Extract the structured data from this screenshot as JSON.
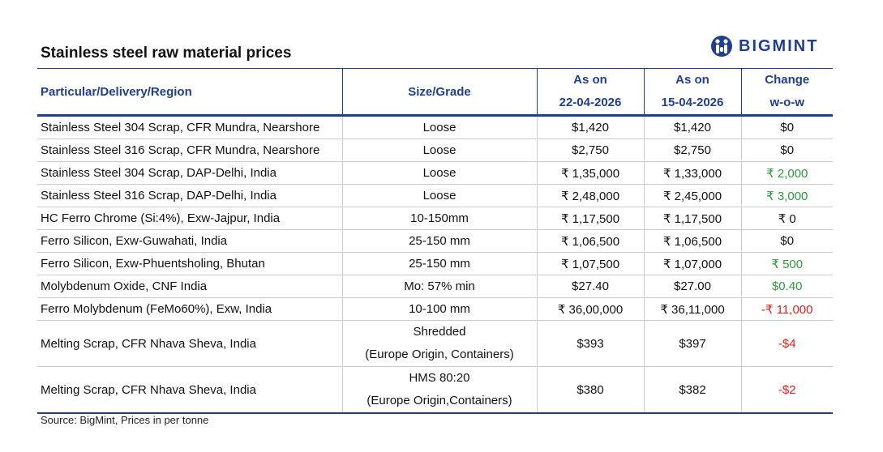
{
  "title": "Stainless steel raw material prices",
  "logo": {
    "text": "BIGMINT",
    "icon": "bigmint-logo-icon",
    "color": "#1f3f8f"
  },
  "table": {
    "headers": {
      "particular": "Particular/Delivery/Region",
      "size": "Size/Grade",
      "current_line1": "As on",
      "current_line2": "22-04-2026",
      "previous_line1": "As on",
      "previous_line2": "15-04-2026",
      "change_line1": "Change",
      "change_line2": "w-o-w"
    },
    "rows": [
      {
        "particular": "Stainless Steel 304 Scrap, CFR Mundra, Nearshore",
        "size1": "Loose",
        "size2": "",
        "current": "$1,420",
        "previous": "$1,420",
        "change": "$0",
        "trend": "neutral"
      },
      {
        "particular": "Stainless Steel 316 Scrap, CFR Mundra, Nearshore",
        "size1": "Loose",
        "size2": "",
        "current": "$2,750",
        "previous": "$2,750",
        "change": "$0",
        "trend": "neutral"
      },
      {
        "particular": "Stainless Steel 304 Scrap, DAP-Delhi, India",
        "size1": "Loose",
        "size2": "",
        "current": "₹ 1,35,000",
        "previous": "₹ 1,33,000",
        "change": "₹ 2,000",
        "trend": "pos"
      },
      {
        "particular": "Stainless Steel 316 Scrap, DAP-Delhi, India",
        "size1": "Loose",
        "size2": "",
        "current": "₹ 2,48,000",
        "previous": "₹ 2,45,000",
        "change": "₹ 3,000",
        "trend": "pos"
      },
      {
        "particular": "HC Ferro Chrome (Si:4%), Exw-Jajpur, India",
        "size1": "10-150mm",
        "size2": "",
        "current": "₹ 1,17,500",
        "previous": "₹ 1,17,500",
        "change": "₹ 0",
        "trend": "neutral"
      },
      {
        "particular": "Ferro Silicon, Exw-Guwahati, India",
        "size1": "25-150 mm",
        "size2": "",
        "current": "₹ 1,06,500",
        "previous": "₹ 1,06,500",
        "change": "$0",
        "trend": "neutral"
      },
      {
        "particular": "Ferro Silicon, Exw-Phuentsholing, Bhutan",
        "size1": "25-150 mm",
        "size2": "",
        "current": "₹ 1,07,500",
        "previous": "₹ 1,07,000",
        "change": "₹ 500",
        "trend": "pos"
      },
      {
        "particular": "Molybdenum Oxide, CNF India",
        "size1": "Mo: 57% min",
        "size2": "",
        "current": "$27.40",
        "previous": "$27.00",
        "change": "$0.40",
        "trend": "pos"
      },
      {
        "particular": "Ferro Molybdenum (FeMo60%), Exw, India",
        "size1": "10-100 mm",
        "size2": "",
        "current": "₹ 36,00,000",
        "previous": "₹ 36,11,000",
        "change": "-₹ 11,000",
        "trend": "neg"
      },
      {
        "particular": "Melting Scrap, CFR Nhava Sheva, India",
        "size1": "Shredded",
        "size2": "(Europe Origin, Containers)",
        "current": "$393",
        "previous": "$397",
        "change": "-$4",
        "trend": "neg"
      },
      {
        "particular": "Melting Scrap, CFR Nhava Sheva, India",
        "size1": "HMS 80:20",
        "size2": "(Europe Origin,Containers)",
        "current": "$380",
        "previous": "$382",
        "change": "-$2",
        "trend": "neg"
      }
    ]
  },
  "source": "Source: BigMint, Prices in per tonne"
}
